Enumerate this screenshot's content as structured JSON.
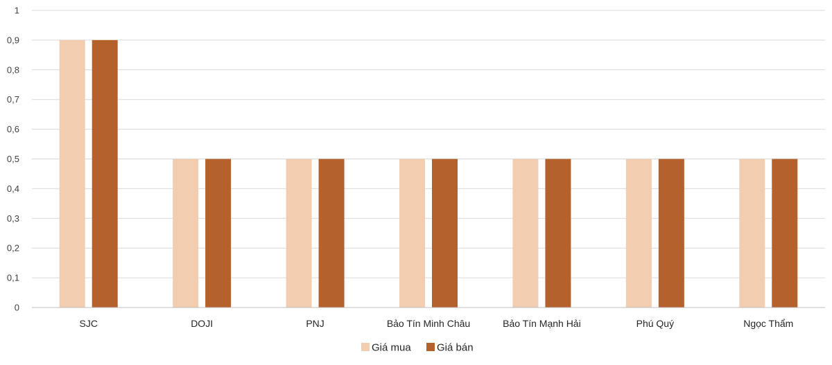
{
  "chart_data": {
    "type": "bar",
    "title": "",
    "xlabel": "",
    "ylabel": "",
    "categories": [
      "SJC",
      "DOJI",
      "PNJ",
      "Bảo Tín Minh Châu",
      "Bảo Tín Mạnh Hải",
      "Phú Quý",
      "Ngọc Thẩm"
    ],
    "series": [
      {
        "name": "Giá mua",
        "color": "#f2cdb0",
        "values": [
          0.9,
          0.5,
          0.5,
          0.5,
          0.5,
          0.5,
          0.5
        ]
      },
      {
        "name": "Giá bán",
        "color": "#b5612b",
        "values": [
          0.9,
          0.5,
          0.5,
          0.5,
          0.5,
          0.5,
          0.5
        ]
      }
    ],
    "ylim": [
      0,
      1
    ],
    "yticks": [
      "0",
      "0,1",
      "0,2",
      "0,3",
      "0,4",
      "0,5",
      "0,6",
      "0,7",
      "0,8",
      "0,9",
      "1"
    ],
    "grid": true,
    "legend_position": "bottom"
  }
}
